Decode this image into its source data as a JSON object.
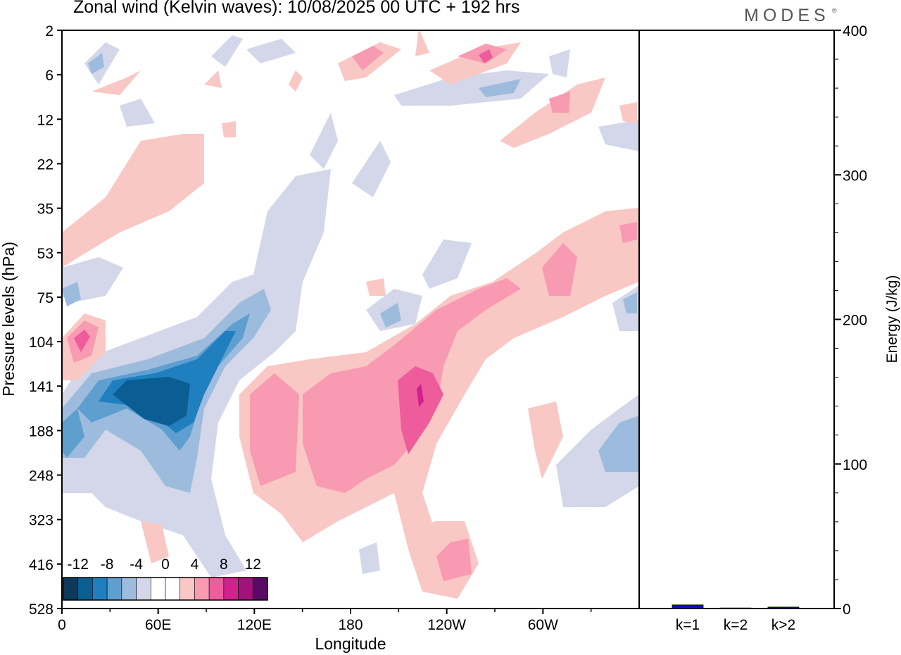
{
  "title": "Zonal wind (Kelvin waves):  10/08/2025  00 UTC  + 192 hrs",
  "brand": "MODES",
  "brand_mark": "®",
  "chart_data": [
    {
      "type": "heatmap",
      "title": "Zonal wind (Kelvin waves):  10/08/2025  00 UTC  + 192 hrs",
      "xlabel": "Longitude",
      "ylabel": "Pressure levels (hPa)",
      "x_ticks": [
        "0",
        "60E",
        "120E",
        "180",
        "120W",
        "60W"
      ],
      "x_tick_degrees": [
        0,
        60,
        120,
        180,
        240,
        300
      ],
      "xlim": [
        0,
        360
      ],
      "y_ticks": [
        "2",
        "6",
        "12",
        "22",
        "35",
        "53",
        "75",
        "104",
        "141",
        "188",
        "248",
        "323",
        "416",
        "528"
      ],
      "colorbar": {
        "labels": [
          "-12",
          "-8",
          "-4",
          "0",
          "4",
          "8",
          "12"
        ],
        "levels": [
          -14,
          -12,
          -10,
          -8,
          -6,
          -4,
          -2,
          0,
          2,
          4,
          6,
          8,
          10,
          12,
          14
        ],
        "colors": [
          "#0d3a5c",
          "#0b5e93",
          "#1f7fbf",
          "#5f9fd0",
          "#9dbcdd",
          "#d3d7e9",
          "#ffffff",
          "#ffffff",
          "#f9c7c4",
          "#f79ab2",
          "#ee5c9c",
          "#d1218c",
          "#a2127a",
          "#5a0a66"
        ]
      },
      "regions": [
        {
          "name": "negative core 60E",
          "lon": [
            20,
            80
          ],
          "level": [
            104,
            248
          ],
          "value": -12
        },
        {
          "name": "negative band 0-60E",
          "lon": [
            0,
            100
          ],
          "level": [
            75,
            323
          ],
          "value": -6
        },
        {
          "name": "positive center 120E-160W",
          "lon": [
            110,
            240
          ],
          "level": [
            104,
            323
          ],
          "value": 6
        },
        {
          "name": "positive max near 140W",
          "lon": [
            210,
            225
          ],
          "level": [
            130,
            200
          ],
          "value": 10
        },
        {
          "name": "positive descending band 120W-60W",
          "lon": [
            240,
            360
          ],
          "level": [
            35,
            141
          ],
          "value": 5
        },
        {
          "name": "positive 0-20E",
          "lon": [
            0,
            25
          ],
          "level": [
            75,
            141
          ],
          "value": 8
        },
        {
          "name": "positive lower 160W-120W",
          "lon": [
            220,
            260
          ],
          "level": [
            323,
            528
          ],
          "value": 6
        },
        {
          "name": "negative east 60W",
          "lon": [
            300,
            360
          ],
          "level": [
            141,
            323
          ],
          "value": -5
        }
      ]
    },
    {
      "type": "bar",
      "title": "",
      "xlabel": "",
      "ylabel": "Energy (J/kg)",
      "ylim": [
        0,
        400
      ],
      "y_ticks": [
        "0",
        "100",
        "200",
        "300",
        "400"
      ],
      "y_tick_values": [
        0,
        100,
        200,
        300,
        400
      ],
      "categories": [
        "k=1",
        "k=2",
        "k>2"
      ],
      "values": [
        2.5,
        0.4,
        1.0
      ],
      "bar_color": "#1010c0"
    }
  ]
}
